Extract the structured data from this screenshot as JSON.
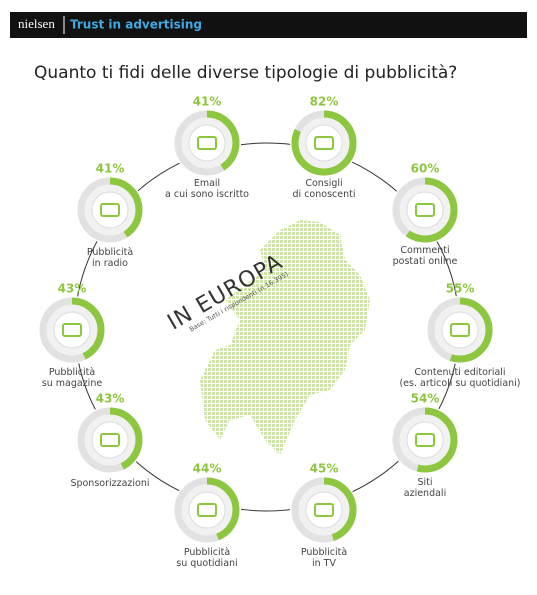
{
  "chart_data": {
    "type": "donut-gauges",
    "brand": "nielsen",
    "header": "Trust in advertising",
    "title": "Quanto ti fidi delle diverse tipologie di pubblicità?",
    "annotation": "IN EUROPA",
    "note": "Base: Tutti i rispondenti (n.16.395)",
    "categories": [
      "Email\na cui sono iscritto",
      "Consigli\ndi conoscenti",
      "Commenti\npostati online",
      "Contenuti editoriali\n(es. articoli su quotidiani)",
      "Siti\naziendali",
      "Pubblicità\nin TV",
      "Pubblicità\nsu quotidiani",
      "Sponsorizzazioni",
      "Pubblicità\nsu magazine",
      "Pubblicità\nin radio"
    ],
    "values": [
      41,
      82,
      60,
      55,
      54,
      45,
      44,
      43,
      43,
      41
    ],
    "value_labels": [
      "41%",
      "82%",
      "60%",
      "55%",
      "54%",
      "45%",
      "44%",
      "43%",
      "43%",
      "41%"
    ],
    "color": "#8dc63f",
    "track_color": "#e2e2e2",
    "ylim": [
      0,
      100
    ]
  }
}
